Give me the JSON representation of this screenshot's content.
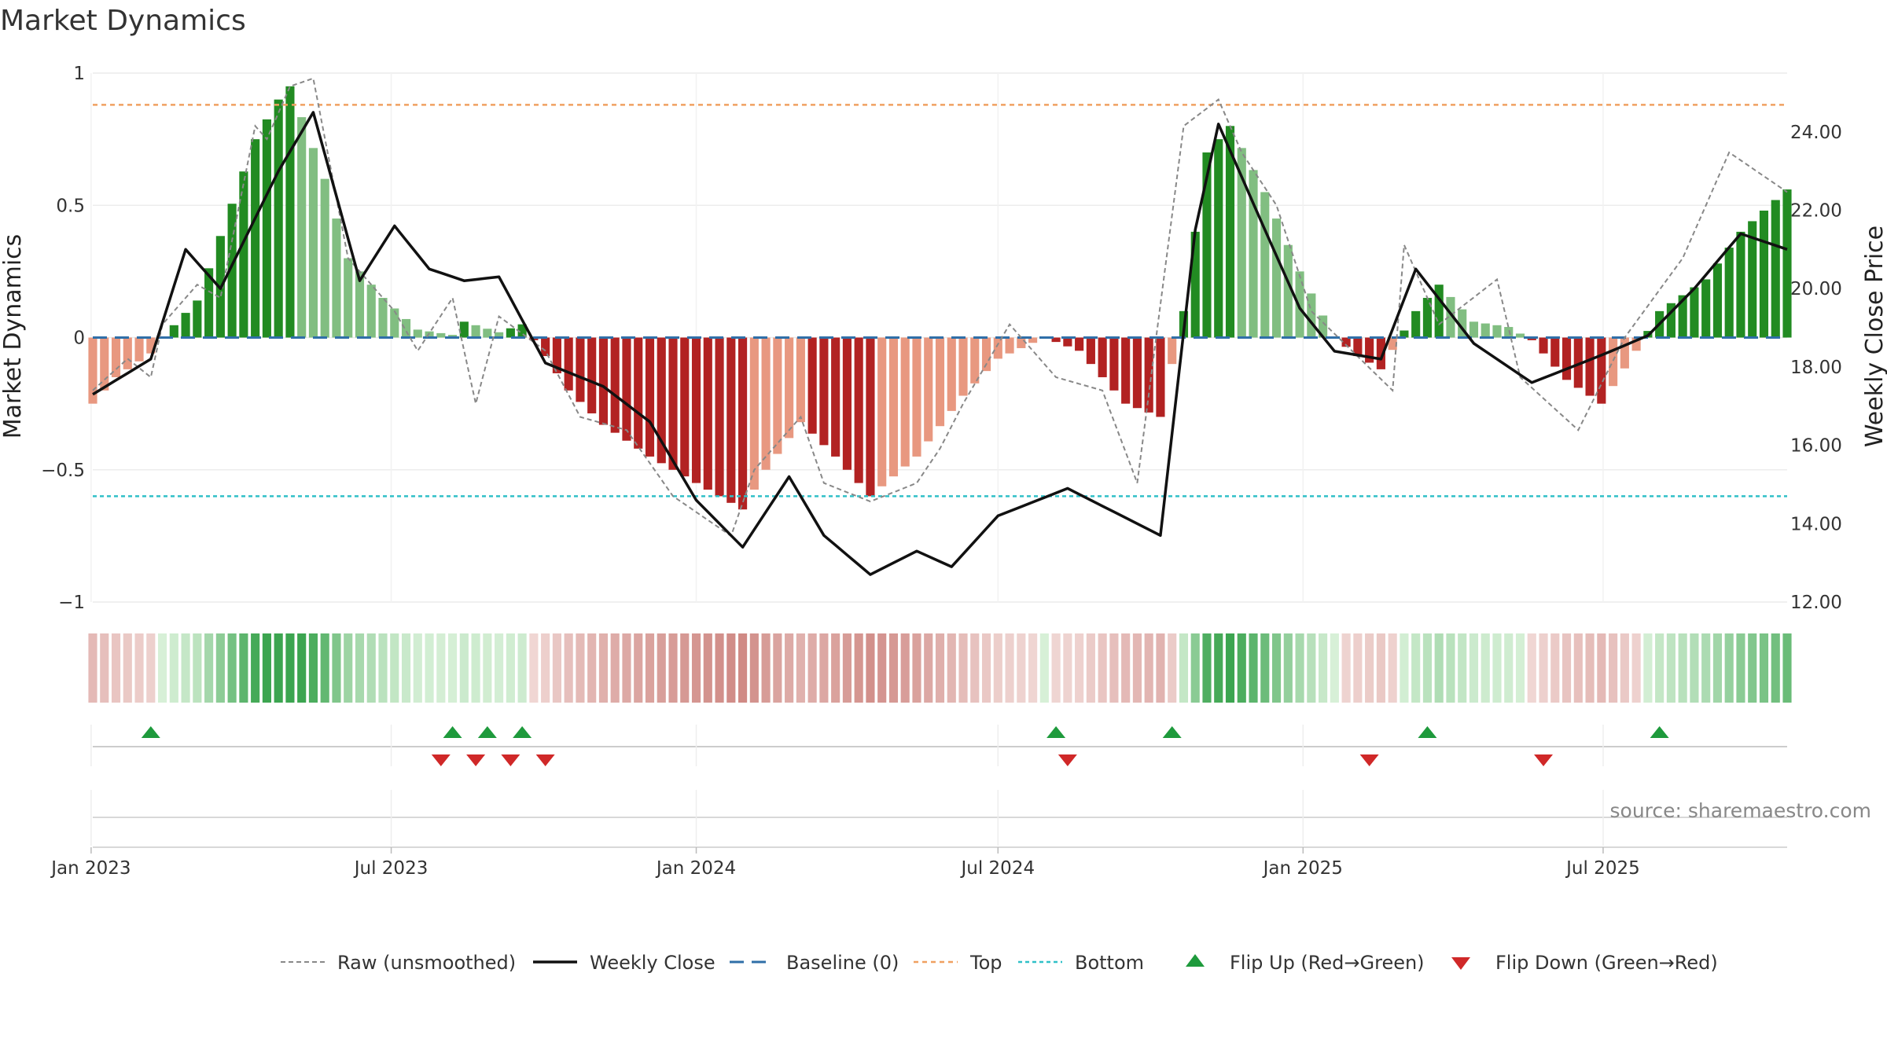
{
  "chart_data": {
    "type": "bar",
    "title": "Market Dynamics",
    "ylabel": "Market Dynamics",
    "ylabel_right": "Weekly Close Price",
    "ylim": [
      -1,
      1
    ],
    "ylim_right": [
      12,
      25.5
    ],
    "yticks": [
      1,
      0.5,
      0,
      -0.5,
      -1
    ],
    "ytick_labels": [
      "1",
      "0.5",
      "0",
      "−0.5",
      "−1"
    ],
    "yticks_right": [
      24,
      22,
      20,
      18,
      16,
      14,
      12
    ],
    "ytick_labels_right": [
      "24.00",
      "22.00",
      "20.00",
      "18.00",
      "16.00",
      "14.00",
      "12.00"
    ],
    "x_start": "2023-01-02",
    "x_end": "2025-10-20",
    "xticks": [
      "2023-01-01",
      "2023-07-01",
      "2024-01-01",
      "2024-07-01",
      "2025-01-01",
      "2025-07-01"
    ],
    "xtick_labels": [
      "Jan 2023",
      "Jul 2023",
      "Jan 2024",
      "Jul 2024",
      "Jan 2025",
      "Jul 2025"
    ],
    "top_level": 0.88,
    "bottom_level": -0.6,
    "baseline": 0,
    "dyn_anchors": [
      [
        "2023-01-02",
        -0.25
      ],
      [
        "2023-01-16",
        -0.15
      ],
      [
        "2023-02-06",
        -0.06
      ],
      [
        "2023-02-13",
        0
      ],
      [
        "2023-03-06",
        0.14
      ],
      [
        "2023-04-10",
        0.75
      ],
      [
        "2023-04-24",
        0.9
      ],
      [
        "2023-05-01",
        0.95
      ],
      [
        "2023-05-22",
        0.6
      ],
      [
        "2023-06-05",
        0.3
      ],
      [
        "2023-06-26",
        0.15
      ],
      [
        "2023-07-17",
        0.03
      ],
      [
        "2023-08-07",
        0.01
      ],
      [
        "2023-08-14",
        0.06
      ],
      [
        "2023-09-04",
        0.02
      ],
      [
        "2023-09-18",
        0.05
      ],
      [
        "2023-10-02",
        -0.07
      ],
      [
        "2023-10-16",
        -0.2
      ],
      [
        "2023-11-06",
        -0.33
      ],
      [
        "2023-12-04",
        -0.45
      ],
      [
        "2024-01-01",
        -0.55
      ],
      [
        "2024-01-29",
        -0.65
      ],
      [
        "2024-02-12",
        -0.5
      ],
      [
        "2024-03-04",
        -0.32
      ],
      [
        "2024-03-25",
        -0.45
      ],
      [
        "2024-04-15",
        -0.6
      ],
      [
        "2024-05-13",
        -0.45
      ],
      [
        "2024-06-10",
        -0.22
      ],
      [
        "2024-07-01",
        -0.08
      ],
      [
        "2024-07-29",
        0
      ],
      [
        "2024-08-19",
        -0.05
      ],
      [
        "2024-09-16",
        -0.25
      ],
      [
        "2024-10-07",
        -0.3
      ],
      [
        "2024-10-21",
        0.1
      ],
      [
        "2024-11-04",
        0.7
      ],
      [
        "2024-11-18",
        0.8
      ],
      [
        "2024-12-09",
        0.55
      ],
      [
        "2024-12-30",
        0.25
      ],
      [
        "2025-01-20",
        0
      ],
      [
        "2025-02-03",
        -0.07
      ],
      [
        "2025-02-17",
        -0.12
      ],
      [
        "2025-03-10",
        0.1
      ],
      [
        "2025-03-24",
        0.2
      ],
      [
        "2025-04-14",
        0.06
      ],
      [
        "2025-05-05",
        0.04
      ],
      [
        "2025-05-19",
        -0.01
      ],
      [
        "2025-06-09",
        -0.16
      ],
      [
        "2025-06-30",
        -0.25
      ],
      [
        "2025-07-21",
        -0.05
      ],
      [
        "2025-08-04",
        0.1
      ],
      [
        "2025-09-01",
        0.22
      ],
      [
        "2025-09-22",
        0.4
      ],
      [
        "2025-10-20",
        0.56
      ]
    ],
    "raw_anchors": [
      [
        "2023-01-02",
        -0.2
      ],
      [
        "2023-01-23",
        -0.08
      ],
      [
        "2023-02-06",
        -0.15
      ],
      [
        "2023-02-13",
        0.05
      ],
      [
        "2023-03-06",
        0.2
      ],
      [
        "2023-03-20",
        0.15
      ],
      [
        "2023-04-10",
        0.8
      ],
      [
        "2023-04-17",
        0.75
      ],
      [
        "2023-05-01",
        0.95
      ],
      [
        "2023-05-15",
        0.98
      ],
      [
        "2023-06-05",
        0.3
      ],
      [
        "2023-07-03",
        0.1
      ],
      [
        "2023-07-17",
        -0.05
      ],
      [
        "2023-08-07",
        0.15
      ],
      [
        "2023-08-21",
        -0.25
      ],
      [
        "2023-09-04",
        0.08
      ],
      [
        "2023-10-02",
        -0.05
      ],
      [
        "2023-10-23",
        -0.3
      ],
      [
        "2023-11-20",
        -0.35
      ],
      [
        "2023-12-18",
        -0.6
      ],
      [
        "2024-01-22",
        -0.75
      ],
      [
        "2024-02-05",
        -0.5
      ],
      [
        "2024-03-04",
        -0.3
      ],
      [
        "2024-03-18",
        -0.55
      ],
      [
        "2024-04-15",
        -0.62
      ],
      [
        "2024-05-13",
        -0.55
      ],
      [
        "2024-05-27",
        -0.42
      ],
      [
        "2024-06-10",
        -0.25
      ],
      [
        "2024-07-08",
        0.05
      ],
      [
        "2024-08-05",
        -0.15
      ],
      [
        "2024-09-02",
        -0.2
      ],
      [
        "2024-09-23",
        -0.55
      ],
      [
        "2024-10-21",
        0.8
      ],
      [
        "2024-11-11",
        0.9
      ],
      [
        "2024-11-25",
        0.7
      ],
      [
        "2024-12-16",
        0.5
      ],
      [
        "2025-01-06",
        0.1
      ],
      [
        "2025-02-24",
        -0.2
      ],
      [
        "2025-03-03",
        0.35
      ],
      [
        "2025-03-24",
        0.05
      ],
      [
        "2025-04-28",
        0.22
      ],
      [
        "2025-05-12",
        -0.15
      ],
      [
        "2025-06-16",
        -0.35
      ],
      [
        "2025-07-14",
        0
      ],
      [
        "2025-08-18",
        0.3
      ],
      [
        "2025-09-15",
        0.7
      ],
      [
        "2025-10-20",
        0.55
      ]
    ],
    "price_anchors": [
      [
        "2023-01-02",
        17.3
      ],
      [
        "2023-02-06",
        18.2
      ],
      [
        "2023-02-27",
        21
      ],
      [
        "2023-03-20",
        20
      ],
      [
        "2023-04-24",
        23
      ],
      [
        "2023-05-15",
        24.5
      ],
      [
        "2023-06-12",
        20.2
      ],
      [
        "2023-07-03",
        21.6
      ],
      [
        "2023-07-24",
        20.5
      ],
      [
        "2023-08-14",
        20.2
      ],
      [
        "2023-09-04",
        20.3
      ],
      [
        "2023-10-02",
        18.1
      ],
      [
        "2023-11-06",
        17.5
      ],
      [
        "2023-12-04",
        16.6
      ],
      [
        "2024-01-01",
        14.6
      ],
      [
        "2024-01-29",
        13.4
      ],
      [
        "2024-02-26",
        15.2
      ],
      [
        "2024-03-18",
        13.7
      ],
      [
        "2024-04-15",
        12.7
      ],
      [
        "2024-05-13",
        13.3
      ],
      [
        "2024-06-03",
        12.9
      ],
      [
        "2024-07-01",
        14.2
      ],
      [
        "2024-08-12",
        14.9
      ],
      [
        "2024-10-07",
        13.7
      ],
      [
        "2024-10-28",
        21.5
      ],
      [
        "2024-11-11",
        24.2
      ],
      [
        "2024-12-09",
        21.5
      ],
      [
        "2024-12-30",
        19.5
      ],
      [
        "2025-01-20",
        18.4
      ],
      [
        "2025-02-17",
        18.2
      ],
      [
        "2025-03-10",
        20.5
      ],
      [
        "2025-04-14",
        18.6
      ],
      [
        "2025-05-19",
        17.6
      ],
      [
        "2025-06-30",
        18.3
      ],
      [
        "2025-07-28",
        18.8
      ],
      [
        "2025-08-25",
        20
      ],
      [
        "2025-09-22",
        21.4
      ],
      [
        "2025-10-20",
        21
      ]
    ],
    "series": [
      {
        "name": "Raw (unsmoothed)"
      },
      {
        "name": "Weekly Close"
      },
      {
        "name": "Baseline (0)"
      },
      {
        "name": "Top"
      },
      {
        "name": "Bottom"
      }
    ],
    "flip_up": [
      "2023-02-06",
      "2023-08-07",
      "2023-08-28",
      "2023-09-18",
      "2024-08-05",
      "2024-10-14",
      "2025-03-17",
      "2025-08-04"
    ],
    "flip_down": [
      "2023-07-31",
      "2023-08-21",
      "2023-09-11",
      "2023-10-02",
      "2024-08-12",
      "2025-02-10",
      "2025-05-26"
    ],
    "legend": [
      "Raw (unsmoothed)",
      "Weekly Close",
      "Baseline (0)",
      "Top",
      "Bottom",
      "Flip Up (Red→Green)",
      "Flip Down (Green→Red)"
    ],
    "legend_position": "bottom-center",
    "annotation": "source: sharemaestro.com",
    "grid": true
  }
}
